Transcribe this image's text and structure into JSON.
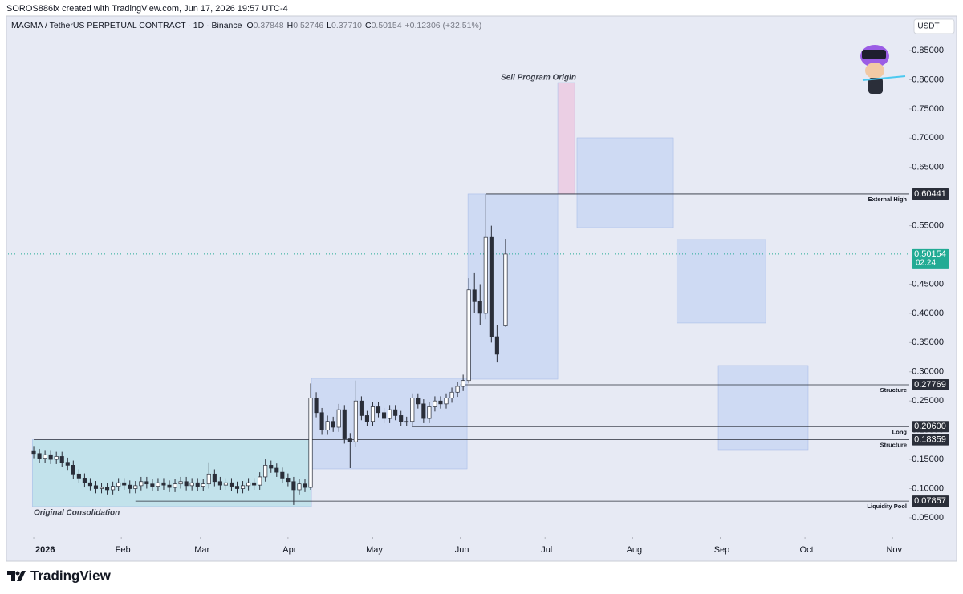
{
  "header": {
    "credit": "SOROS886ix created with TradingView.com, Jun 17, 2026 19:57 UTC-4",
    "symbol": "MAGMA / TetherUS PERPETUAL CONTRACT · 1D · Binance",
    "ohlc": [
      {
        "label": "O",
        "value": "0.37848"
      },
      {
        "label": "H",
        "value": "0.52746"
      },
      {
        "label": "L",
        "value": "0.37710"
      },
      {
        "label": "C",
        "value": "0.50154"
      }
    ],
    "change": "+0.12306 (+32.51%)",
    "currency": "USDT"
  },
  "footer": {
    "logo_text": "TradingView"
  },
  "chart_data": {
    "type": "candlestick",
    "up_color": "#ffffff",
    "down_color": "#2a2e39",
    "outline_color": "#2a2e39",
    "x": [
      0,
      2,
      4,
      6,
      8,
      10,
      12,
      14,
      16,
      18,
      20,
      22,
      24,
      26,
      28,
      30,
      32,
      34,
      36,
      38,
      40,
      42,
      44,
      46,
      48,
      50,
      52,
      54,
      56,
      58,
      60,
      62,
      64,
      66,
      68,
      70,
      72,
      74,
      76,
      78,
      80,
      82,
      84,
      86,
      88,
      90,
      92,
      94,
      96,
      98,
      100,
      102,
      104,
      106,
      108,
      110,
      112,
      114,
      116,
      118,
      120,
      122,
      124,
      126,
      128,
      130,
      132,
      134,
      136,
      138,
      140,
      142,
      144,
      146,
      148,
      150,
      152,
      154,
      156,
      158,
      160,
      162,
      164,
      167
    ],
    "open": [
      0.165,
      0.16,
      0.152,
      0.158,
      0.15,
      0.155,
      0.145,
      0.14,
      0.125,
      0.118,
      0.11,
      0.105,
      0.1,
      0.102,
      0.098,
      0.104,
      0.11,
      0.106,
      0.1,
      0.105,
      0.112,
      0.108,
      0.104,
      0.11,
      0.106,
      0.102,
      0.108,
      0.112,
      0.105,
      0.11,
      0.104,
      0.108,
      0.125,
      0.112,
      0.106,
      0.11,
      0.104,
      0.1,
      0.105,
      0.11,
      0.106,
      0.12,
      0.14,
      0.135,
      0.128,
      0.118,
      0.112,
      0.098,
      0.108,
      0.102,
      0.255,
      0.23,
      0.2,
      0.215,
      0.205,
      0.235,
      0.185,
      0.18,
      0.25,
      0.225,
      0.215,
      0.24,
      0.23,
      0.22,
      0.235,
      0.225,
      0.215,
      0.215,
      0.255,
      0.245,
      0.22,
      0.24,
      0.25,
      0.245,
      0.255,
      0.265,
      0.275,
      0.285,
      0.44,
      0.42,
      0.4,
      0.53,
      0.36,
      0.37848
    ],
    "high": [
      0.173,
      0.168,
      0.166,
      0.166,
      0.163,
      0.163,
      0.153,
      0.148,
      0.133,
      0.126,
      0.118,
      0.113,
      0.11,
      0.11,
      0.112,
      0.118,
      0.118,
      0.114,
      0.113,
      0.12,
      0.12,
      0.116,
      0.118,
      0.118,
      0.114,
      0.116,
      0.12,
      0.12,
      0.118,
      0.118,
      0.116,
      0.145,
      0.133,
      0.12,
      0.118,
      0.118,
      0.112,
      0.113,
      0.118,
      0.118,
      0.128,
      0.15,
      0.148,
      0.143,
      0.136,
      0.126,
      0.12,
      0.116,
      0.116,
      0.28,
      0.265,
      0.238,
      0.225,
      0.223,
      0.245,
      0.243,
      0.195,
      0.285,
      0.258,
      0.233,
      0.248,
      0.248,
      0.238,
      0.243,
      0.243,
      0.233,
      0.223,
      0.263,
      0.263,
      0.253,
      0.248,
      0.258,
      0.258,
      0.263,
      0.273,
      0.283,
      0.295,
      0.46,
      0.47,
      0.45,
      0.60441,
      0.55,
      0.38,
      0.52746
    ],
    "low": [
      0.152,
      0.144,
      0.144,
      0.142,
      0.142,
      0.137,
      0.132,
      0.117,
      0.11,
      0.102,
      0.097,
      0.092,
      0.092,
      0.09,
      0.09,
      0.096,
      0.098,
      0.092,
      0.092,
      0.097,
      0.1,
      0.096,
      0.096,
      0.098,
      0.094,
      0.094,
      0.1,
      0.097,
      0.097,
      0.096,
      0.096,
      0.1,
      0.104,
      0.098,
      0.098,
      0.096,
      0.092,
      0.092,
      0.097,
      0.098,
      0.098,
      0.112,
      0.127,
      0.12,
      0.11,
      0.104,
      0.072,
      0.09,
      0.094,
      0.098,
      0.222,
      0.192,
      0.192,
      0.197,
      0.197,
      0.177,
      0.135,
      0.172,
      0.217,
      0.207,
      0.207,
      0.222,
      0.212,
      0.212,
      0.217,
      0.207,
      0.207,
      0.207,
      0.237,
      0.212,
      0.212,
      0.232,
      0.237,
      0.237,
      0.247,
      0.257,
      0.267,
      0.28,
      0.4,
      0.38,
      0.39,
      0.35,
      0.316,
      0.3771
    ],
    "close": [
      0.16,
      0.152,
      0.158,
      0.15,
      0.155,
      0.145,
      0.14,
      0.125,
      0.118,
      0.11,
      0.105,
      0.1,
      0.102,
      0.098,
      0.104,
      0.11,
      0.106,
      0.1,
      0.105,
      0.112,
      0.108,
      0.104,
      0.11,
      0.106,
      0.102,
      0.108,
      0.112,
      0.105,
      0.11,
      0.104,
      0.108,
      0.125,
      0.112,
      0.106,
      0.11,
      0.104,
      0.1,
      0.105,
      0.11,
      0.106,
      0.12,
      0.14,
      0.135,
      0.128,
      0.118,
      0.112,
      0.098,
      0.108,
      0.102,
      0.255,
      0.23,
      0.2,
      0.215,
      0.205,
      0.235,
      0.185,
      0.18,
      0.25,
      0.225,
      0.215,
      0.24,
      0.23,
      0.22,
      0.235,
      0.225,
      0.215,
      0.215,
      0.255,
      0.245,
      0.22,
      0.24,
      0.25,
      0.245,
      0.255,
      0.265,
      0.275,
      0.285,
      0.44,
      0.42,
      0.4,
      0.53,
      0.36,
      0.33,
      0.50154
    ],
    "xlim": [
      -9.1,
      309.9
    ],
    "xticks": [
      {
        "value": 0,
        "label": "2026"
      },
      {
        "value": 31,
        "label": "Feb"
      },
      {
        "value": 59,
        "label": "Mar"
      },
      {
        "value": 90,
        "label": "Apr"
      },
      {
        "value": 120,
        "label": "May"
      },
      {
        "value": 151,
        "label": "Jun"
      },
      {
        "value": 181,
        "label": "Jul"
      },
      {
        "value": 212,
        "label": "Aug"
      },
      {
        "value": 243,
        "label": "Sep"
      },
      {
        "value": 273,
        "label": "Oct"
      },
      {
        "value": 304,
        "label": "Nov"
      }
    ],
    "ylim": [
      0.017,
      0.909
    ],
    "yticks": [
      {
        "value": 0.05,
        "label": "0.05000"
      },
      {
        "value": 0.1,
        "label": "0.10000"
      },
      {
        "value": 0.15,
        "label": "0.15000"
      },
      {
        "value": 0.2,
        "label": "0.20000"
      },
      {
        "value": 0.25,
        "label": "0.25000"
      },
      {
        "value": 0.3,
        "label": "0.30000"
      },
      {
        "value": 0.35,
        "label": "0.35000"
      },
      {
        "value": 0.4,
        "label": "0.40000"
      },
      {
        "value": 0.45,
        "label": "0.45000"
      },
      {
        "value": 0.55,
        "label": "0.55000"
      },
      {
        "value": 0.65,
        "label": "0.65000"
      },
      {
        "value": 0.7,
        "label": "0.70000"
      },
      {
        "value": 0.75,
        "label": "0.75000"
      },
      {
        "value": 0.8,
        "label": "0.80000"
      },
      {
        "value": 0.85,
        "label": "0.85000"
      }
    ],
    "levels": [
      {
        "value": 0.60441,
        "label": "0.60441",
        "name": "External High",
        "start": 160
      },
      {
        "value": 0.27769,
        "label": "0.27769",
        "name": "Structure",
        "start": 151
      },
      {
        "value": 0.206,
        "label": "0.20600",
        "name": "Long",
        "start": 134
      },
      {
        "value": 0.18359,
        "label": "0.18359",
        "name": "Structure",
        "start": 0
      },
      {
        "value": 0.07857,
        "label": "0.07857",
        "name": "Liquidity Pool",
        "start": 36
      }
    ],
    "last_price": {
      "value": 0.50154,
      "label": "0.50154",
      "countdown": "02:24",
      "color": "#22ab94"
    },
    "zones": [
      {
        "x0": -0.5,
        "x1": 98.3,
        "y0": 0.0692,
        "y1": 0.18359,
        "color": "#b9e0e8"
      },
      {
        "x0": 98.3,
        "x1": 153.4,
        "y0": 0.1337,
        "y1": 0.2888,
        "color": "#c8d6f3"
      },
      {
        "x0": 153.7,
        "x1": 185.5,
        "y0": 0.2874,
        "y1": 0.60441,
        "color": "#c8d6f3"
      },
      {
        "x0": 185.5,
        "x1": 191.5,
        "y0": 0.60441,
        "y1": 0.795,
        "color": "#ecc8e0"
      },
      {
        "x0": 192.3,
        "x1": 226.4,
        "y0": 0.5467,
        "y1": 0.7004,
        "color": "#c8d6f3"
      },
      {
        "x0": 227.6,
        "x1": 259.1,
        "y0": 0.3835,
        "y1": 0.5262,
        "color": "#c8d6f3"
      },
      {
        "x0": 242.3,
        "x1": 274.1,
        "y0": 0.1666,
        "y1": 0.3107,
        "color": "#c8d6f3"
      }
    ],
    "annotations": [
      "Sell Program Origin",
      "Original Consolidation"
    ]
  }
}
